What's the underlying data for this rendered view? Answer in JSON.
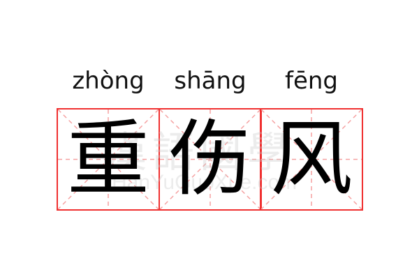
{
  "words": [
    {
      "pinyin": "zhòng",
      "hanzi": "重"
    },
    {
      "pinyin": "shāng",
      "hanzi": "伤"
    },
    {
      "pinyin": "fēng",
      "hanzi": "风"
    }
  ],
  "watermark": {
    "chinese": "漢語國學",
    "latin": "HanYuGuoXue.com"
  },
  "colors": {
    "grid_border": "#f03030",
    "guide_lines": "#f5a0a0"
  }
}
